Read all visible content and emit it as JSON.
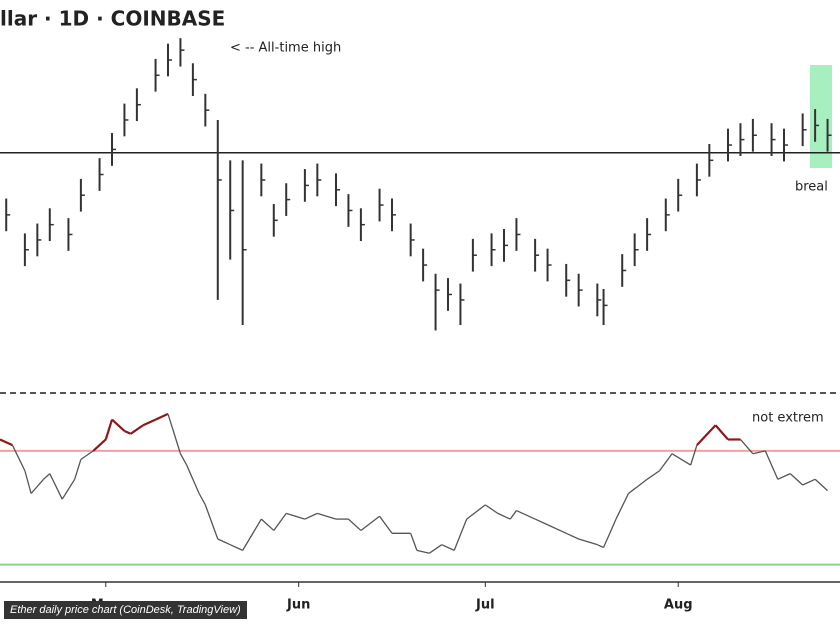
{
  "caption": "Ether daily price chart (CoinDesk, TradingView)",
  "chart_data": [
    {
      "type": "ohlc",
      "title": "llar · 1D · COINBASE",
      "annotations": [
        "< -- All-time high",
        "breal"
      ],
      "x": [
        -16,
        -13,
        -11,
        -9,
        -6,
        -4,
        -1,
        1,
        3,
        5,
        8,
        10,
        12,
        14,
        16,
        18,
        20,
        22,
        25,
        27,
        29,
        32,
        34,
        37,
        39,
        41,
        44,
        46,
        49,
        51,
        53,
        55,
        57,
        59,
        62,
        64,
        66,
        69,
        71,
        74,
        76,
        79,
        80,
        83,
        85,
        87,
        90,
        92,
        95,
        97,
        100,
        102,
        104,
        107,
        109,
        112,
        114,
        116
      ],
      "high": [
        2910,
        2590,
        2680,
        2820,
        2730,
        3090,
        3280,
        3510,
        3780,
        3920,
        4190,
        4330,
        4380,
        4150,
        3870,
        3630,
        3260,
        3260,
        3230,
        2860,
        3050,
        3180,
        3230,
        3140,
        2950,
        2820,
        3000,
        2910,
        2680,
        2450,
        2220,
        2180,
        2130,
        2540,
        2590,
        2630,
        2730,
        2540,
        2450,
        2310,
        2220,
        2130,
        2080,
        2400,
        2590,
        2730,
        2910,
        3090,
        3230,
        3410,
        3550,
        3600,
        3640,
        3600,
        3550,
        3690,
        3730,
        3640
      ],
      "low": [
        2610,
        2290,
        2380,
        2520,
        2430,
        2790,
        2980,
        3210,
        3480,
        3620,
        3890,
        4030,
        4120,
        3850,
        3570,
        1980,
        2350,
        1750,
        2930,
        2560,
        2750,
        2880,
        2930,
        2840,
        2650,
        2520,
        2700,
        2610,
        2380,
        2150,
        1700,
        1880,
        1750,
        2240,
        2290,
        2330,
        2430,
        2240,
        2150,
        2010,
        1920,
        1830,
        1750,
        2100,
        2290,
        2430,
        2610,
        2790,
        2930,
        3110,
        3250,
        3300,
        3340,
        3300,
        3250,
        3390,
        3430,
        3340
      ],
      "close": [
        2760,
        2440,
        2530,
        2670,
        2580,
        2940,
        3130,
        3360,
        3630,
        3770,
        4040,
        4180,
        4270,
        4000,
        3720,
        3080,
        2800,
        2440,
        3080,
        2710,
        2900,
        3030,
        3080,
        2990,
        2800,
        2670,
        2850,
        2760,
        2530,
        2300,
        2070,
        2030,
        1980,
        2390,
        2440,
        2480,
        2580,
        2390,
        2300,
        2160,
        2070,
        1980,
        1930,
        2250,
        2440,
        2580,
        2760,
        2940,
        3080,
        3260,
        3400,
        3450,
        3490,
        3450,
        3400,
        3540,
        3580,
        3490
      ],
      "color": "#333333",
      "level": 3330,
      "level_color": "#222222",
      "xlim": [
        -17,
        118
      ],
      "ylim": [
        1200,
        4730
      ]
    },
    {
      "type": "line",
      "annotations": [
        "not extrem"
      ],
      "x": [
        -17,
        -15,
        -13,
        -12,
        -10,
        -9,
        -7,
        -5,
        -4,
        -2,
        0,
        1,
        3,
        4,
        6,
        8,
        10,
        12,
        13,
        15,
        16,
        18,
        20,
        22,
        25,
        27,
        29,
        32,
        34,
        37,
        39,
        41,
        44,
        46,
        49,
        50,
        52,
        54,
        56,
        58,
        61,
        63,
        65,
        66,
        69,
        71,
        74,
        76,
        79,
        80,
        82,
        84,
        87,
        89,
        91,
        94,
        95,
        98,
        100,
        102,
        104,
        106,
        108,
        110,
        112,
        114,
        116
      ],
      "values": [
        74,
        72,
        63,
        55,
        60,
        62,
        53,
        60,
        67,
        70,
        74,
        81,
        77,
        76,
        79,
        81,
        83,
        69,
        65,
        55,
        51,
        39,
        37,
        35,
        46,
        42,
        48,
        46,
        48,
        46,
        46,
        42,
        47,
        41,
        41,
        35,
        34,
        37,
        35,
        46,
        51,
        48,
        46,
        49,
        46,
        44,
        41,
        39,
        37,
        36,
        46,
        55,
        60,
        63,
        69,
        65,
        72,
        79,
        74,
        74,
        69,
        70,
        60,
        62,
        58,
        60,
        56
      ],
      "color": "#555555",
      "high_color": "#8b1a1a",
      "low_color": "#1e6b1e",
      "levels": [
        70,
        30
      ],
      "level_colors": [
        "#f4a0a0",
        "#8fd08f"
      ],
      "xticks": [
        {
          "value": 0,
          "label": "May"
        },
        {
          "value": 31,
          "label": "Jun"
        },
        {
          "value": 61,
          "label": "Jul"
        },
        {
          "value": 92,
          "label": "Aug"
        }
      ],
      "xlim": [
        -17,
        118
      ],
      "ylim": [
        20,
        90
      ]
    }
  ]
}
